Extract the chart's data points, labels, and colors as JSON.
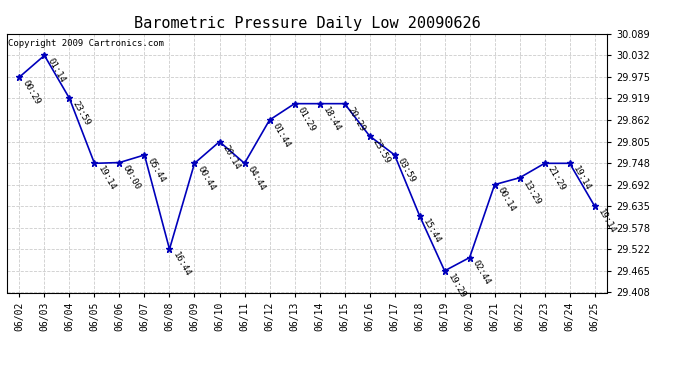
{
  "title": "Barometric Pressure Daily Low 20090626",
  "copyright": "Copyright 2009 Cartronics.com",
  "dates": [
    "06/02",
    "06/03",
    "06/04",
    "06/05",
    "06/06",
    "06/07",
    "06/08",
    "06/09",
    "06/10",
    "06/11",
    "06/12",
    "06/13",
    "06/14",
    "06/15",
    "06/16",
    "06/17",
    "06/18",
    "06/19",
    "06/20",
    "06/21",
    "06/22",
    "06/23",
    "06/24",
    "06/25"
  ],
  "values": [
    29.975,
    30.032,
    29.919,
    29.748,
    29.75,
    29.77,
    29.522,
    29.748,
    29.805,
    29.748,
    29.862,
    29.905,
    29.905,
    29.905,
    29.82,
    29.77,
    29.61,
    29.465,
    29.5,
    29.692,
    29.71,
    29.748,
    29.748,
    29.635
  ],
  "times": [
    "00:29",
    "01:14",
    "23:59",
    "19:14",
    "00:00",
    "05:44",
    "16:44",
    "00:44",
    "20:14",
    "04:44",
    "01:44",
    "01:29",
    "18:44",
    "20:29",
    "23:59",
    "03:59",
    "15:44",
    "19:29",
    "02:44",
    "00:14",
    "13:29",
    "21:29",
    "19:14",
    "19:14"
  ],
  "ylim": [
    29.408,
    30.089
  ],
  "yticks": [
    29.408,
    29.465,
    29.522,
    29.578,
    29.635,
    29.692,
    29.748,
    29.805,
    29.862,
    29.919,
    29.975,
    30.032,
    30.089
  ],
  "line_color": "#0000bb",
  "marker_color": "#0000bb",
  "bg_color": "#ffffff",
  "grid_color": "#cccccc",
  "title_fontsize": 11,
  "tick_fontsize": 7,
  "label_fontsize": 6.5,
  "copyright_fontsize": 6.5
}
